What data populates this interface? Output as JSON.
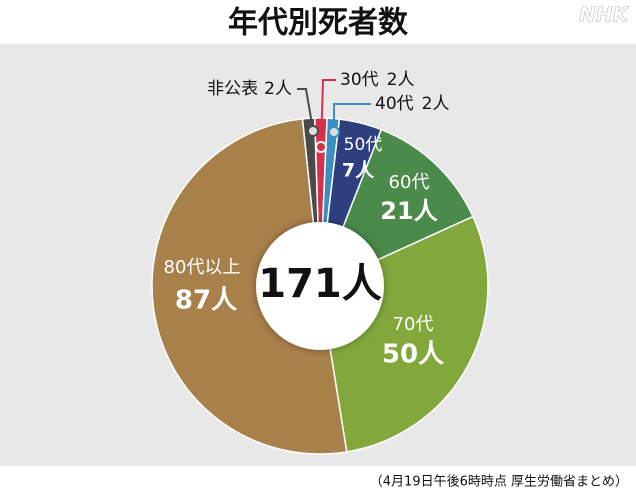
{
  "chart_data": {
    "type": "pie",
    "title": "年代別死者数",
    "logo": "NHK",
    "center_label": "171人",
    "source": "（4月19日午後6時時点 厚生労働省まとめ）",
    "categories": [
      "非公表",
      "30代",
      "40代",
      "50代",
      "60代",
      "70代",
      "80代以上"
    ],
    "values": [
      2,
      2,
      2,
      7,
      21,
      50,
      87
    ],
    "value_labels": [
      "2人",
      "2人",
      "2人",
      "7人",
      "21人",
      "50人",
      "87人"
    ],
    "colors": [
      "#4a4a4a",
      "#d6304a",
      "#3a8fc0",
      "#2e3f7f",
      "#4a8a4a",
      "#82a83c",
      "#a8804a"
    ]
  }
}
